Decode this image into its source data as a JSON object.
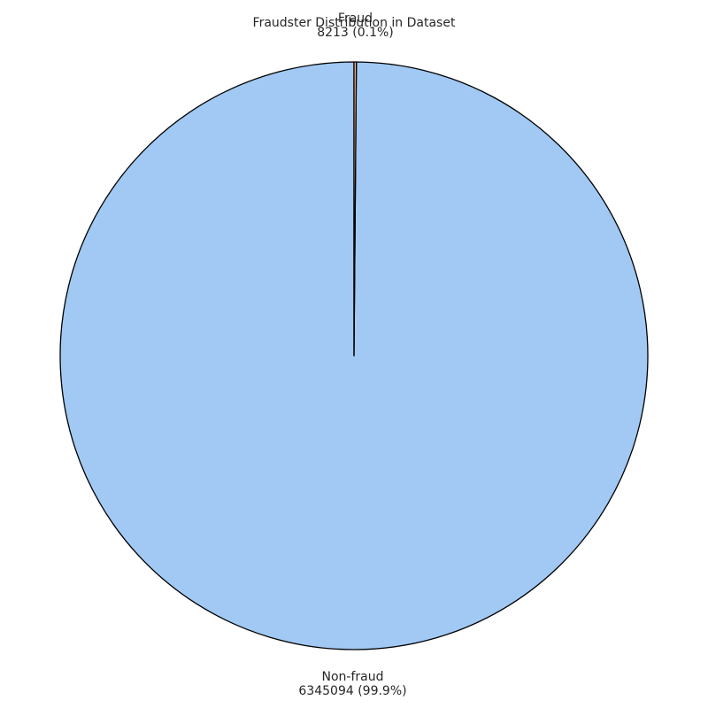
{
  "chart_data": {
    "type": "pie",
    "title": "Fraudster Distribution in Dataset",
    "slices": [
      {
        "label": "Non-fraud",
        "value": 6345094,
        "percent_label": "6345094 (99.9%)",
        "color": "#a1c9f4"
      },
      {
        "label": "Fraud",
        "value": 8213,
        "percent_label": "8213 (0.1%)",
        "color": "#ffb482"
      }
    ],
    "edge_color": "#000000",
    "start_angle_deg": 90,
    "legend": "none"
  }
}
